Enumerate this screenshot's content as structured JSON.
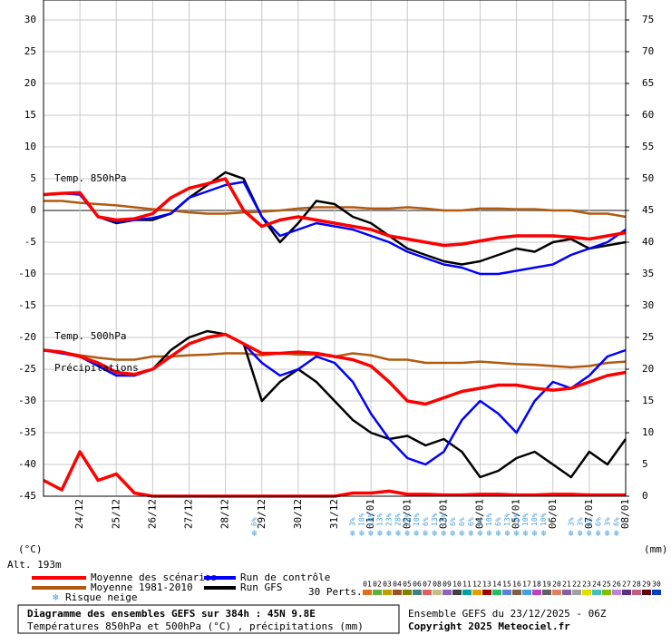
{
  "chart_data": {
    "type": "line",
    "x": [
      0,
      0.5,
      1,
      1.5,
      2,
      2.5,
      3,
      3.5,
      4,
      4.5,
      5,
      5.5,
      6,
      6.5,
      7,
      7.5,
      8,
      8.5,
      9,
      9.5,
      10,
      10.5,
      11,
      11.5,
      12,
      12.5,
      13,
      13.5,
      14,
      14.5,
      15,
      15.5,
      16
    ],
    "xlim": [
      0,
      16
    ],
    "xticks": [
      {
        "value": 1,
        "label": "24/12"
      },
      {
        "value": 2,
        "label": "25/12"
      },
      {
        "value": 3,
        "label": "26/12"
      },
      {
        "value": 4,
        "label": "27/12"
      },
      {
        "value": 5,
        "label": "28/12"
      },
      {
        "value": 6,
        "label": "29/12"
      },
      {
        "value": 7,
        "label": "30/12"
      },
      {
        "value": 8,
        "label": "31/12"
      },
      {
        "value": 9,
        "label": "01/01"
      },
      {
        "value": 10,
        "label": "02/01"
      },
      {
        "value": 11,
        "label": "03/01"
      },
      {
        "value": 12,
        "label": "04/01"
      },
      {
        "value": 13,
        "label": "05/01"
      },
      {
        "value": 14,
        "label": "06/01"
      },
      {
        "value": 15,
        "label": "07/01"
      },
      {
        "value": 16,
        "label": "08/01"
      }
    ],
    "ylim": [
      -45,
      30
    ],
    "yticks": [
      -45,
      -40,
      -35,
      -30,
      -25,
      -20,
      -15,
      -10,
      -5,
      0,
      5,
      10,
      15,
      20,
      25,
      30
    ],
    "y2lim": [
      0,
      75
    ],
    "y2ticks": [
      0,
      5,
      10,
      15,
      20,
      25,
      30,
      35,
      40,
      45,
      50,
      55,
      60,
      65,
      70,
      75
    ],
    "grid": true,
    "y_unit": "(°C)",
    "y2_unit": "(mm)",
    "altitude": "Alt. 193m",
    "level_labels": [
      "Temp. 850hPa",
      "Temp. 500hPa",
      "Précipitations"
    ],
    "series": [
      {
        "name": "Moyenne des scénarios",
        "color": "#ff0000",
        "t850": [
          2.5,
          2.7,
          2.8,
          -1,
          -1.5,
          -1.3,
          -0.5,
          2,
          3.5,
          4.2,
          5,
          0,
          -2.5,
          -1.5,
          -1,
          -1.5,
          -2,
          -2.5,
          -3,
          -4,
          -4.5,
          -5,
          -5.5,
          -5.3,
          -4.8,
          -4.3,
          -4,
          -4,
          -4,
          -4.2,
          -4.5,
          -4,
          -3.5
        ],
        "t500": [
          -22,
          -22.3,
          -23,
          -24,
          -25.5,
          -25.8,
          -25,
          -23,
          -21,
          -20,
          -19.5,
          -21,
          -22.5,
          -22.5,
          -22.3,
          -22.5,
          -23,
          -23.5,
          -24.5,
          -27,
          -30,
          -30.5,
          -29.5,
          -28.5,
          -28,
          -27.5,
          -27.5,
          -28,
          -28.3,
          -28,
          -27,
          -26,
          -25.5
        ],
        "precip": [
          2.5,
          1,
          7,
          2.5,
          3.5,
          0.5,
          0,
          0,
          0,
          0,
          0,
          0,
          0,
          0,
          0,
          0,
          0,
          0.5,
          0.5,
          0.8,
          0.3,
          0.3,
          0.2,
          0.2,
          0.3,
          0.3,
          0.2,
          0.2,
          0.3,
          0.3,
          0.2,
          0.2,
          0.2
        ]
      },
      {
        "name": "Moyenne 1981-2010",
        "color": "#b05a10",
        "t850": [
          1.5,
          1.5,
          1.2,
          1,
          0.8,
          0.5,
          0.2,
          0,
          -0.3,
          -0.5,
          -0.5,
          -0.3,
          -0.2,
          0,
          0.3,
          0.5,
          0.5,
          0.5,
          0.3,
          0.3,
          0.5,
          0.3,
          0,
          0,
          0.3,
          0.3,
          0.2,
          0.2,
          0,
          0,
          -0.5,
          -0.5,
          -1
        ],
        "t500": [
          -22,
          -22.3,
          -22.8,
          -23.2,
          -23.5,
          -23.5,
          -23,
          -23,
          -22.8,
          -22.7,
          -22.5,
          -22.5,
          -22.8,
          -22.5,
          -22.7,
          -22.7,
          -23,
          -22.5,
          -22.8,
          -23.5,
          -23.5,
          -24,
          -24,
          -24,
          -23.8,
          -24,
          -24.2,
          -24.3,
          -24.5,
          -24.7,
          -24.5,
          -24,
          -23.8
        ]
      },
      {
        "name": "Run de contrôle",
        "color": "#0000ff",
        "t850": [
          2.5,
          2.7,
          2.5,
          -1,
          -1.8,
          -1.5,
          -1.2,
          -0.5,
          2,
          3,
          4,
          4.5,
          -1,
          -4,
          -3,
          -2,
          -2.5,
          -3,
          -4,
          -5,
          -6.5,
          -7.5,
          -8.5,
          -9,
          -10,
          -10,
          -9.5,
          -9,
          -8.5,
          -7,
          -6,
          -5,
          -3
        ],
        "t500": [
          -22,
          -22.5,
          -23,
          -24.5,
          -26,
          -26,
          -25,
          -23,
          -21,
          -20,
          -19.5,
          -21,
          -24,
          -26,
          -25,
          -23,
          -24,
          -27,
          -32,
          -36,
          -39,
          -40,
          -38,
          -33,
          -30,
          -32,
          -35,
          -30,
          -27,
          -28,
          -26,
          -23,
          -22
        ]
      },
      {
        "name": "Run GFS",
        "color": "#000000",
        "t850": [
          2.5,
          2.7,
          2.6,
          -1,
          -2,
          -1.5,
          -1.5,
          -0.5,
          2,
          4,
          6,
          5,
          -1,
          -5,
          -2,
          1.5,
          1,
          -1,
          -2,
          -4,
          -6,
          -7,
          -8,
          -8.5,
          -8,
          -7,
          -6,
          -6.5,
          -5,
          -4.5,
          -6,
          -5.5,
          -5
        ],
        "t500": [
          -22,
          -22.3,
          -23,
          -24,
          -25.5,
          -26,
          -25,
          -22,
          -20,
          -19,
          -19.5,
          -21,
          -30,
          -27,
          -25,
          -27,
          -30,
          -33,
          -35,
          -36,
          -35.5,
          -37,
          -36,
          -38,
          -42,
          -41,
          -39,
          -38,
          -40,
          -42,
          -38,
          -40,
          -36
        ]
      }
    ],
    "snow_risk": {
      "label": "Risque neige",
      "x": [
        5.8,
        8.5,
        8.75,
        9,
        9.25,
        9.5,
        9.75,
        10,
        10.25,
        10.5,
        10.75,
        11,
        11.25,
        11.5,
        11.75,
        12,
        12.25,
        12.5,
        12.75,
        13,
        13.25,
        13.5,
        13.75,
        14.5,
        14.75,
        15,
        15.25,
        15.5,
        15.75
      ],
      "values": [
        6,
        3,
        10,
        10,
        13,
        23,
        28,
        20,
        10,
        6,
        13,
        10,
        6,
        6,
        6,
        3,
        10,
        6,
        13,
        10,
        10,
        10,
        10,
        3,
        3,
        6,
        6,
        3,
        6
      ],
      "value_labels": [
        "6%",
        "3%",
        "10%",
        "10%",
        "13%",
        "23%",
        "28%",
        "20%",
        "10%",
        "6%",
        "13%",
        "10%",
        "6%",
        "6%",
        "6%",
        "3%",
        "10%",
        "6%",
        "13%",
        "10%",
        "10%",
        "10%",
        "10%",
        "3%",
        "3%",
        "6%",
        "6%",
        "3%",
        "6%"
      ]
    },
    "perturbations": {
      "label": "30 Perts.",
      "names": [
        "01",
        "02",
        "03",
        "04",
        "05",
        "06",
        "07",
        "08",
        "09",
        "10",
        "11",
        "12",
        "13",
        "14",
        "15",
        "16",
        "17",
        "18",
        "19",
        "20",
        "21",
        "22",
        "23",
        "24",
        "25",
        "26",
        "27",
        "28",
        "29",
        "30"
      ],
      "colors": [
        "#e07020",
        "#60b040",
        "#c0a000",
        "#a05020",
        "#808000",
        "#408080",
        "#e06060",
        "#c0c080",
        "#9060c0",
        "#404040",
        "#00a0a0",
        "#e0a000",
        "#a00000",
        "#20c060",
        "#6080e0",
        "#806040",
        "#40a0e0",
        "#c040c0",
        "#606060",
        "#e08060",
        "#8060a0",
        "#a0a0a0",
        "#e0e000",
        "#40c0c0",
        "#80c000",
        "#c080e0",
        "#603080",
        "#c06080",
        "#600000",
        "#0040c0"
      ]
    }
  },
  "footer": {
    "title": "Diagramme des ensembles GEFS sur 384h : 45N 9.8E",
    "subtitle": "Températures 850hPa et 500hPa (°C) , précipitations (mm)",
    "run": "Ensemble GEFS du 23/12/2025 - 06Z",
    "copyright": "Copyright 2025 Meteociel.fr"
  }
}
